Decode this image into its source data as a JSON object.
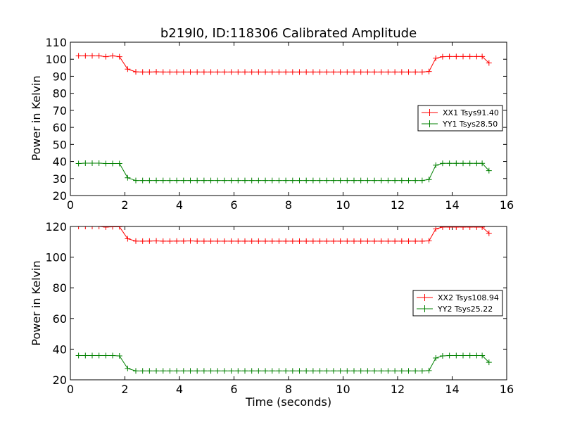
{
  "chart_data": [
    {
      "type": "line",
      "title": "b219l0, ID:118306 Calibrated Amplitude",
      "xlabel": "",
      "ylabel": "Power in Kelvin",
      "xlim": [
        0,
        16
      ],
      "ylim": [
        20,
        110
      ],
      "xticks": [
        "0",
        "2",
        "4",
        "6",
        "8",
        "10",
        "12",
        "14",
        "16"
      ],
      "yticks": [
        "20",
        "30",
        "40",
        "50",
        "60",
        "70",
        "80",
        "90",
        "100",
        "110"
      ],
      "legend_position": "center-right",
      "marker": "+",
      "x": [
        0.3,
        0.55,
        0.8,
        1.05,
        1.3,
        1.55,
        1.8,
        2.1,
        2.4,
        2.65,
        2.9,
        3.15,
        3.4,
        3.65,
        3.9,
        4.15,
        4.4,
        4.65,
        4.9,
        5.15,
        5.4,
        5.65,
        5.9,
        6.15,
        6.4,
        6.65,
        6.9,
        7.15,
        7.4,
        7.65,
        7.9,
        8.15,
        8.4,
        8.65,
        8.9,
        9.15,
        9.4,
        9.65,
        9.9,
        10.15,
        10.4,
        10.65,
        10.9,
        11.15,
        11.4,
        11.65,
        11.9,
        12.15,
        12.4,
        12.65,
        12.9,
        13.15,
        13.4,
        13.65,
        13.9,
        14.15,
        14.4,
        14.65,
        14.9,
        15.1,
        15.35
      ],
      "series": [
        {
          "name": "XX1 Tsys91.40",
          "color": "#ff0000",
          "values": [
            102,
            102,
            102,
            102,
            101.5,
            102,
            101.5,
            94.2,
            92.6,
            92.5,
            92.5,
            92.6,
            92.5,
            92.5,
            92.5,
            92.5,
            92.5,
            92.5,
            92.5,
            92.5,
            92.5,
            92.5,
            92.5,
            92.5,
            92.5,
            92.5,
            92.5,
            92.5,
            92.5,
            92.5,
            92.5,
            92.5,
            92.5,
            92.5,
            92.5,
            92.5,
            92.5,
            92.5,
            92.5,
            92.5,
            92.5,
            92.5,
            92.5,
            92.5,
            92.5,
            92.5,
            92.5,
            92.5,
            92.5,
            92.5,
            92.5,
            92.8,
            100.6,
            101.5,
            101.6,
            101.6,
            101.6,
            101.6,
            101.6,
            101.6,
            97.8
          ]
        },
        {
          "name": "YY1 Tsys28.50",
          "color": "#008000",
          "values": [
            38.8,
            39,
            39,
            39,
            38.8,
            38.8,
            38.8,
            30.4,
            28.8,
            28.8,
            28.8,
            28.8,
            28.8,
            28.8,
            28.8,
            28.8,
            28.8,
            28.8,
            28.8,
            28.8,
            28.8,
            28.8,
            28.8,
            28.8,
            28.8,
            28.8,
            28.8,
            28.8,
            28.8,
            28.8,
            28.8,
            28.8,
            28.8,
            28.8,
            28.8,
            28.8,
            28.8,
            28.8,
            28.8,
            28.8,
            28.8,
            28.8,
            28.8,
            28.8,
            28.8,
            28.8,
            28.8,
            28.8,
            28.8,
            28.8,
            28.8,
            29.4,
            37.8,
            38.9,
            38.9,
            38.9,
            38.9,
            38.9,
            38.9,
            38.9,
            34.6
          ]
        }
      ]
    },
    {
      "type": "line",
      "title": "",
      "xlabel": "Time (seconds)",
      "ylabel": "Power in Kelvin",
      "xlim": [
        0,
        16
      ],
      "ylim": [
        20,
        120
      ],
      "xticks": [
        "0",
        "2",
        "4",
        "6",
        "8",
        "10",
        "12",
        "14",
        "16"
      ],
      "yticks": [
        "20",
        "40",
        "60",
        "80",
        "100",
        "120"
      ],
      "legend_position": "center-right",
      "marker": "+",
      "x": [
        0.3,
        0.55,
        0.8,
        1.05,
        1.3,
        1.55,
        1.8,
        2.1,
        2.4,
        2.65,
        2.9,
        3.15,
        3.4,
        3.65,
        3.9,
        4.15,
        4.4,
        4.65,
        4.9,
        5.15,
        5.4,
        5.65,
        5.9,
        6.15,
        6.4,
        6.65,
        6.9,
        7.15,
        7.4,
        7.65,
        7.9,
        8.15,
        8.4,
        8.65,
        8.9,
        9.15,
        9.4,
        9.65,
        9.9,
        10.15,
        10.4,
        10.65,
        10.9,
        11.15,
        11.4,
        11.65,
        11.9,
        12.15,
        12.4,
        12.65,
        12.9,
        13.15,
        13.4,
        13.65,
        13.9,
        14.15,
        14.4,
        14.65,
        14.9,
        15.1,
        15.35
      ],
      "series": [
        {
          "name": "XX2 Tsys108.94",
          "color": "#ff0000",
          "values": [
            120,
            120,
            120,
            120,
            119.6,
            119.8,
            119.8,
            112,
            110.5,
            110.4,
            110.5,
            110.6,
            110.4,
            110.4,
            110.5,
            110.5,
            110.6,
            110.4,
            110.4,
            110.4,
            110.4,
            110.4,
            110.4,
            110.4,
            110.4,
            110.4,
            110.4,
            110.4,
            110.4,
            110.4,
            110.4,
            110.4,
            110.4,
            110.4,
            110.4,
            110.4,
            110.4,
            110.4,
            110.4,
            110.4,
            110.4,
            110.4,
            110.4,
            110.4,
            110.4,
            110.4,
            110.4,
            110.4,
            110.4,
            110.4,
            110.4,
            110.6,
            118.4,
            119.6,
            119.6,
            119.6,
            119.6,
            119.6,
            119.6,
            119.6,
            115.6
          ]
        },
        {
          "name": "YY2 Tsys25.22",
          "color": "#008000",
          "values": [
            35.8,
            35.8,
            35.8,
            35.8,
            35.8,
            35.8,
            35.6,
            27.4,
            25.8,
            25.8,
            25.8,
            25.8,
            25.8,
            25.8,
            25.8,
            25.8,
            25.8,
            25.8,
            25.8,
            25.8,
            25.8,
            25.8,
            25.8,
            25.8,
            25.8,
            25.8,
            25.8,
            25.8,
            25.8,
            25.8,
            25.8,
            25.8,
            25.8,
            25.8,
            25.8,
            25.8,
            25.8,
            25.8,
            25.8,
            25.8,
            25.8,
            25.8,
            25.8,
            25.8,
            25.8,
            25.8,
            25.8,
            25.8,
            25.8,
            25.8,
            25.8,
            26,
            34.2,
            35.6,
            35.8,
            35.8,
            35.8,
            35.8,
            35.8,
            35.8,
            31.4
          ]
        }
      ]
    }
  ]
}
